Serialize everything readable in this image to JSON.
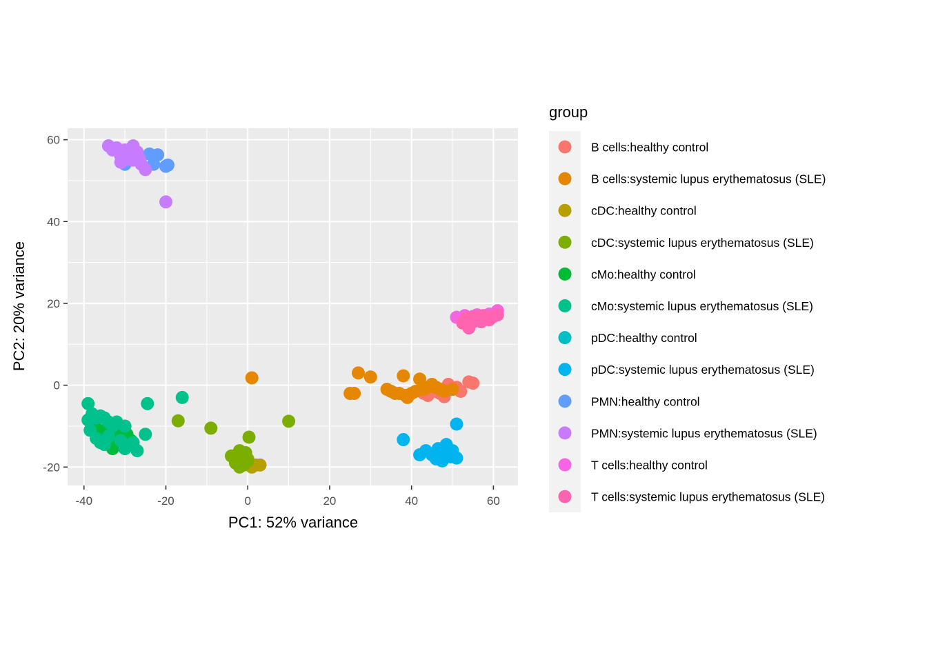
{
  "chart_data": {
    "type": "scatter",
    "title": "",
    "xlabel": "PC1: 52% variance",
    "ylabel": "PC2: 20% variance",
    "xlim": [
      -44,
      66
    ],
    "ylim": [
      -24.5,
      62.8
    ],
    "x_ticks": [
      -40,
      -20,
      0,
      20,
      40,
      60
    ],
    "x_tick_labels": [
      "-40",
      "-20",
      "0",
      "20",
      "40",
      "60"
    ],
    "y_ticks": [
      -20,
      0,
      20,
      40,
      60
    ],
    "y_tick_labels": [
      "-20",
      "0",
      "20",
      "40",
      "60"
    ],
    "grid": true,
    "legend": {
      "title": "group",
      "placement": "right"
    },
    "series": [
      {
        "name": "B cells:healthy control",
        "color": "#F8766D",
        "points": [
          [
            43,
            -2
          ],
          [
            44,
            -2.5
          ],
          [
            46,
            -1.5
          ],
          [
            47,
            -2
          ],
          [
            48,
            -2.8
          ],
          [
            49,
            0.2
          ],
          [
            50,
            -1
          ],
          [
            51,
            -0.5
          ],
          [
            52,
            -1.5
          ],
          [
            54,
            0.8
          ],
          [
            55,
            0.5
          ]
        ]
      },
      {
        "name": "B cells:systemic lupus erythematosus (SLE)",
        "color": "#E58700",
        "points": [
          [
            1,
            1.8
          ],
          [
            25,
            -2
          ],
          [
            26,
            -2
          ],
          [
            27,
            3
          ],
          [
            30,
            2
          ],
          [
            34,
            -1
          ],
          [
            35,
            -1.5
          ],
          [
            36,
            -2
          ],
          [
            37,
            -2
          ],
          [
            38,
            2.3
          ],
          [
            38.5,
            -2.5
          ],
          [
            39,
            -3
          ],
          [
            40,
            -2
          ],
          [
            41,
            -1.5
          ],
          [
            42,
            1.5
          ],
          [
            43,
            -1
          ],
          [
            44,
            -0.5
          ],
          [
            45,
            0.2
          ],
          [
            46,
            -0.5
          ],
          [
            47,
            -1
          ],
          [
            48,
            -1.5
          ],
          [
            50,
            -1
          ]
        ]
      },
      {
        "name": "cDC:healthy control",
        "color": "#B79F00",
        "points": [
          [
            -1,
            -19
          ],
          [
            0,
            -18
          ],
          [
            1,
            -20
          ],
          [
            2,
            -19.5
          ],
          [
            3,
            -19.5
          ],
          [
            -2,
            -18.5
          ]
        ]
      },
      {
        "name": "cDC:systemic lupus erythematosus (SLE)",
        "color": "#7CAE00",
        "points": [
          [
            -17,
            -8.7
          ],
          [
            -9,
            -10.5
          ],
          [
            10,
            -8.8
          ],
          [
            0.3,
            -12.7
          ],
          [
            -4,
            -17.3
          ],
          [
            -3,
            -18
          ],
          [
            -2,
            -16
          ],
          [
            -1,
            -17
          ],
          [
            -3,
            -19
          ],
          [
            -2,
            -20
          ],
          [
            -1,
            -19.5
          ],
          [
            0,
            -18.5
          ],
          [
            -1.5,
            -17.5
          ],
          [
            -0.5,
            -16.5
          ]
        ]
      },
      {
        "name": "cMo:healthy control",
        "color": "#00BA38",
        "points": [
          [
            -37,
            -10.5
          ],
          [
            -36,
            -12
          ],
          [
            -35,
            -11
          ],
          [
            -34,
            -13
          ],
          [
            -33,
            -12
          ],
          [
            -32,
            -14
          ],
          [
            -31,
            -13
          ],
          [
            -30,
            -15
          ],
          [
            -29,
            -14
          ],
          [
            -33,
            -15.5
          ],
          [
            -31,
            -11
          ],
          [
            -30,
            -12.5
          ],
          [
            -32,
            -12
          ],
          [
            -34,
            -11.5
          ],
          [
            -29.5,
            -12
          ],
          [
            -28.5,
            -13.5
          ]
        ]
      },
      {
        "name": "cMo:systemic lupus erythematosus (SLE)",
        "color": "#00C08B",
        "points": [
          [
            -39,
            -4.5
          ],
          [
            -39,
            -8.5
          ],
          [
            -38,
            -7
          ],
          [
            -37,
            -8
          ],
          [
            -36,
            -7.5
          ],
          [
            -35,
            -8
          ],
          [
            -34,
            -9
          ],
          [
            -33,
            -10
          ],
          [
            -32,
            -9
          ],
          [
            -38.5,
            -11
          ],
          [
            -37,
            -13
          ],
          [
            -36,
            -14
          ],
          [
            -35,
            -14.5
          ],
          [
            -30,
            -10
          ],
          [
            -28,
            -14
          ],
          [
            -27,
            -16
          ],
          [
            -25,
            -12
          ],
          [
            -24.5,
            -4.5
          ],
          [
            -16,
            -3
          ],
          [
            -30,
            -15.5
          ],
          [
            -31,
            -13.5
          ],
          [
            -34,
            -12.5
          ]
        ]
      },
      {
        "name": "pDC:healthy control",
        "color": "#00BFC4",
        "points": []
      },
      {
        "name": "pDC:systemic lupus erythematosus (SLE)",
        "color": "#00B4F0",
        "points": [
          [
            38,
            -13.3
          ],
          [
            42,
            -17
          ],
          [
            43.5,
            -16
          ],
          [
            45,
            -17
          ],
          [
            46,
            -18
          ],
          [
            46.5,
            -15.5
          ],
          [
            47,
            -16
          ],
          [
            47.5,
            -18.5
          ],
          [
            48,
            -17
          ],
          [
            48.5,
            -14.5
          ],
          [
            49,
            -16.5
          ],
          [
            49.5,
            -17.5
          ],
          [
            50,
            -16
          ],
          [
            51,
            -17.8
          ],
          [
            51,
            -9.5
          ]
        ]
      },
      {
        "name": "PMN:healthy control",
        "color": "#619CFF",
        "points": [
          [
            -30,
            54
          ],
          [
            -29,
            55
          ],
          [
            -24,
            56.5
          ],
          [
            -22,
            56.3
          ],
          [
            -23,
            54
          ],
          [
            -20,
            53.5
          ],
          [
            -19.5,
            53.8
          ]
        ]
      },
      {
        "name": "PMN:systemic lupus erythematosus (SLE)",
        "color": "#C77CFF",
        "points": [
          [
            -34,
            58.5
          ],
          [
            -33,
            57.5
          ],
          [
            -32,
            58
          ],
          [
            -31,
            56
          ],
          [
            -31,
            54.5
          ],
          [
            -30,
            57.5
          ],
          [
            -29,
            56
          ],
          [
            -28,
            58.5
          ],
          [
            -28,
            55
          ],
          [
            -27,
            57
          ],
          [
            -26,
            54
          ],
          [
            -25,
            52.7
          ],
          [
            -26.5,
            55.5
          ],
          [
            -20,
            44.8
          ],
          [
            -29.5,
            55.2
          ]
        ]
      },
      {
        "name": "T cells:healthy control",
        "color": "#F564E3",
        "points": [
          [
            51,
            16.6
          ],
          [
            52,
            16.2
          ],
          [
            53,
            17
          ],
          [
            54,
            16
          ],
          [
            55,
            16.8
          ],
          [
            56,
            17.2
          ],
          [
            57,
            16.5
          ],
          [
            58,
            17
          ],
          [
            59,
            17.4
          ],
          [
            60,
            17
          ],
          [
            61,
            18.2
          ]
        ]
      },
      {
        "name": "T cells:systemic lupus erythematosus (SLE)",
        "color": "#FF64B0",
        "points": [
          [
            52.5,
            15.2
          ],
          [
            53.5,
            16.5
          ],
          [
            54,
            14
          ],
          [
            55,
            15.5
          ],
          [
            56,
            16
          ],
          [
            57,
            15.5
          ],
          [
            58,
            16.2
          ],
          [
            59,
            16
          ],
          [
            60,
            16.8
          ],
          [
            61,
            17.2
          ],
          [
            55.5,
            16.7
          ],
          [
            57.5,
            17
          ]
        ]
      }
    ]
  }
}
